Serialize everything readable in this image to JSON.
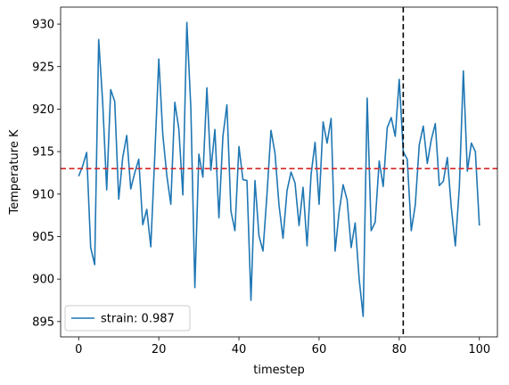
{
  "chart_data": {
    "type": "line",
    "title": "",
    "xlabel": "timestep",
    "ylabel": "Temperature K",
    "xlim": [
      -4.5,
      104.5
    ],
    "ylim": [
      893.2,
      932.0
    ],
    "xticks": [
      0,
      20,
      40,
      60,
      80,
      100
    ],
    "yticks": [
      895,
      900,
      905,
      910,
      915,
      920,
      925,
      930
    ],
    "grid": false,
    "legend_position": "lower-left",
    "series": [
      {
        "name": "strain: 0.987",
        "color": "#1f77b4",
        "x": [
          0,
          1,
          2,
          3,
          4,
          5,
          6,
          7,
          8,
          9,
          10,
          11,
          12,
          13,
          14,
          15,
          16,
          17,
          18,
          19,
          20,
          21,
          22,
          23,
          24,
          25,
          26,
          27,
          28,
          29,
          30,
          31,
          32,
          33,
          34,
          35,
          36,
          37,
          38,
          39,
          40,
          41,
          42,
          43,
          44,
          45,
          46,
          47,
          48,
          49,
          50,
          51,
          52,
          53,
          54,
          55,
          56,
          57,
          58,
          59,
          60,
          61,
          62,
          63,
          64,
          65,
          66,
          67,
          68,
          69,
          70,
          71,
          72,
          73,
          74,
          75,
          76,
          77,
          78,
          79,
          80,
          81,
          82,
          83,
          84,
          85,
          86,
          87,
          88,
          89,
          90,
          91,
          92,
          93,
          94,
          95,
          96,
          97,
          98,
          99,
          100
        ],
        "y": [
          912.1,
          913.3,
          914.9,
          903.7,
          901.7,
          928.2,
          920.8,
          910.5,
          922.3,
          920.9,
          909.4,
          914.3,
          916.9,
          910.6,
          912.5,
          914.1,
          906.4,
          908.2,
          903.8,
          914.5,
          925.9,
          917.0,
          912.2,
          908.8,
          920.8,
          917.7,
          909.9,
          930.2,
          920.1,
          899.0,
          914.7,
          912.0,
          922.5,
          912.8,
          917.6,
          907.2,
          916.8,
          920.5,
          908.0,
          905.7,
          915.6,
          911.7,
          911.6,
          897.5,
          911.6,
          905.1,
          903.3,
          910.0,
          917.5,
          914.8,
          908.7,
          904.8,
          910.4,
          912.6,
          911.3,
          906.3,
          910.8,
          903.9,
          912.3,
          916.1,
          908.8,
          918.5,
          916.0,
          918.9,
          903.3,
          907.9,
          911.1,
          909.3,
          903.7,
          906.6,
          900.0,
          895.6,
          921.3,
          905.7,
          906.7,
          913.9,
          910.9,
          917.8,
          919.0,
          916.8,
          923.5,
          915.0,
          914.1,
          905.7,
          908.7,
          915.8,
          918.0,
          913.6,
          916.4,
          918.3,
          911.0,
          911.5,
          914.3,
          908.4,
          903.9,
          910.8,
          924.5,
          912.7,
          916.0,
          915.0,
          906.3
        ]
      }
    ],
    "reference_lines": [
      {
        "orientation": "horizontal",
        "value": 913.0,
        "color": "#d62728",
        "style": "dashed"
      },
      {
        "orientation": "vertical",
        "value": 81.0,
        "color": "#000000",
        "style": "dashed"
      }
    ]
  }
}
